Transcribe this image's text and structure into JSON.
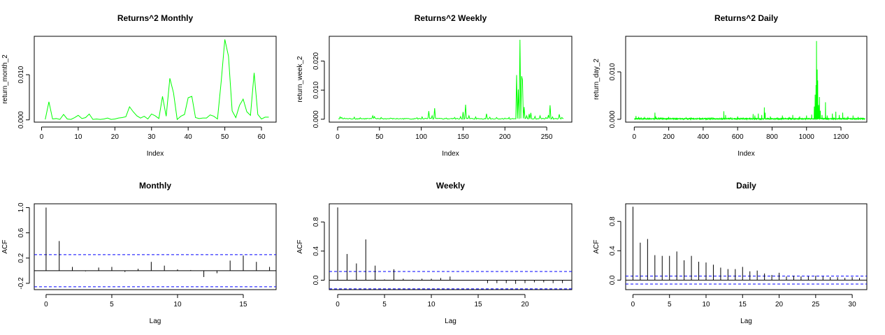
{
  "chart_data": [
    {
      "id": "p1",
      "type": "line",
      "title": "Returns^2 Monthly",
      "xlabel": "Index",
      "ylabel": "return_month_2",
      "xlim": [
        -2,
        64
      ],
      "ylim": [
        -0.0005,
        0.0185
      ],
      "xticks": [
        0,
        10,
        20,
        30,
        40,
        50,
        60
      ],
      "yticks": [
        0.0,
        0.01
      ],
      "ytick_labels": [
        "0.000",
        "0.010"
      ],
      "series": [
        {
          "color": "#00ff00",
          "x": [
            1,
            2,
            3,
            4,
            5,
            6,
            7,
            8,
            9,
            10,
            11,
            12,
            13,
            14,
            15,
            16,
            17,
            18,
            19,
            20,
            21,
            22,
            23,
            24,
            25,
            26,
            27,
            28,
            29,
            30,
            31,
            32,
            33,
            34,
            35,
            36,
            37,
            38,
            39,
            40,
            41,
            42,
            43,
            44,
            45,
            46,
            47,
            48,
            49,
            50,
            51,
            52,
            53,
            54,
            55,
            56,
            57,
            58,
            59,
            60,
            61,
            62
          ],
          "y": [
            0.0001,
            0.004,
            0.0002,
            0.0003,
            0.0001,
            0.0012,
            0.0002,
            0.0001,
            0.0005,
            0.001,
            0.0003,
            0.0005,
            0.0013,
            0.0001,
            0.0002,
            0.0001,
            0.0002,
            0.0004,
            0.0001,
            0.0002,
            0.0004,
            0.0005,
            0.0007,
            0.0029,
            0.0018,
            0.0009,
            0.0004,
            0.0008,
            0.0002,
            0.0013,
            0.0009,
            0.0003,
            0.0052,
            0.0008,
            0.0092,
            0.006,
            0.0001,
            0.0008,
            0.0012,
            0.0049,
            0.0052,
            0.0005,
            0.0003,
            0.0004,
            0.0004,
            0.0011,
            0.0008,
            0.0002,
            0.0084,
            0.0178,
            0.0141,
            0.002,
            0.0005,
            0.0032,
            0.0046,
            0.0018,
            0.001,
            0.0104,
            0.0012,
            0.0002,
            0.0006,
            0.0006
          ]
        }
      ]
    },
    {
      "id": "p2",
      "type": "line",
      "title": "Returns^2 Weekly",
      "xlabel": "Index",
      "ylabel": "return_week_2",
      "xlim": [
        -10,
        280
      ],
      "ylim": [
        -0.001,
        0.0285
      ],
      "xticks": [
        0,
        50,
        100,
        150,
        200,
        250
      ],
      "yticks": [
        0.0,
        0.01,
        0.02
      ],
      "ytick_labels": [
        "0.000",
        "0.010",
        "0.020"
      ],
      "series": [
        {
          "color": "#00ff00",
          "peaks": [
            [
              3,
              0.0008
            ],
            [
              5,
              0.0006
            ],
            [
              8,
              0.0004
            ],
            [
              20,
              0.0007
            ],
            [
              27,
              0.0005
            ],
            [
              35,
              0.0003
            ],
            [
              42,
              0.0012
            ],
            [
              44,
              0.0009
            ],
            [
              52,
              0.0006
            ],
            [
              63,
              0.0004
            ],
            [
              80,
              0.0003
            ],
            [
              95,
              0.0005
            ],
            [
              101,
              0.0008
            ],
            [
              109,
              0.0028
            ],
            [
              113,
              0.0012
            ],
            [
              116,
              0.0038
            ],
            [
              130,
              0.0004
            ],
            [
              140,
              0.0006
            ],
            [
              147,
              0.0009
            ],
            [
              150,
              0.0025
            ],
            [
              153,
              0.005
            ],
            [
              157,
              0.0012
            ],
            [
              165,
              0.0008
            ],
            [
              178,
              0.0019
            ],
            [
              182,
              0.0007
            ],
            [
              190,
              0.0006
            ],
            [
              200,
              0.0004
            ],
            [
              205,
              0.0006
            ],
            [
              214,
              0.0152
            ],
            [
              216,
              0.0102
            ],
            [
              218,
              0.0273
            ],
            [
              220,
              0.0148
            ],
            [
              221,
              0.0135
            ],
            [
              223,
              0.0042
            ],
            [
              226,
              0.0012
            ],
            [
              229,
              0.0018
            ],
            [
              231,
              0.0022
            ],
            [
              236,
              0.001
            ],
            [
              242,
              0.0012
            ],
            [
              249,
              0.0006
            ],
            [
              252,
              0.0014
            ],
            [
              254,
              0.0048
            ],
            [
              257,
              0.0008
            ],
            [
              265,
              0.0017
            ],
            [
              268,
              0.0006
            ],
            [
              271,
              0.0009
            ]
          ]
        }
      ]
    },
    {
      "id": "p3",
      "type": "line",
      "title": "Returns^2 Daily",
      "xlabel": "Index",
      "ylabel": "return_day_2",
      "xlim": [
        -50,
        1350
      ],
      "ylim": [
        -0.0006,
        0.0175
      ],
      "xticks": [
        0,
        200,
        400,
        600,
        800,
        1000,
        1200
      ],
      "yticks": [
        0.0,
        0.01
      ],
      "ytick_labels": [
        "0.000",
        "0.010"
      ],
      "series": [
        {
          "color": "#00ff00",
          "peaks": [
            [
              10,
              0.0007
            ],
            [
              25,
              0.0005
            ],
            [
              40,
              0.0004
            ],
            [
              60,
              0.0005
            ],
            [
              120,
              0.0014
            ],
            [
              125,
              0.0006
            ],
            [
              140,
              0.0004
            ],
            [
              200,
              0.0005
            ],
            [
              230,
              0.0003
            ],
            [
              300,
              0.0003
            ],
            [
              330,
              0.0004
            ],
            [
              410,
              0.0003
            ],
            [
              450,
              0.0004
            ],
            [
              520,
              0.0017
            ],
            [
              530,
              0.0009
            ],
            [
              560,
              0.0004
            ],
            [
              600,
              0.0006
            ],
            [
              650,
              0.0003
            ],
            [
              690,
              0.0011
            ],
            [
              700,
              0.0008
            ],
            [
              720,
              0.0012
            ],
            [
              740,
              0.0009
            ],
            [
              755,
              0.0025
            ],
            [
              760,
              0.0014
            ],
            [
              790,
              0.0006
            ],
            [
              830,
              0.0004
            ],
            [
              860,
              0.0008
            ],
            [
              900,
              0.0005
            ],
            [
              920,
              0.0009
            ],
            [
              960,
              0.0006
            ],
            [
              1000,
              0.0008
            ],
            [
              1030,
              0.001
            ],
            [
              1045,
              0.0027
            ],
            [
              1050,
              0.0052
            ],
            [
              1055,
              0.0072
            ],
            [
              1058,
              0.0165
            ],
            [
              1062,
              0.0105
            ],
            [
              1065,
              0.0082
            ],
            [
              1070,
              0.003
            ],
            [
              1075,
              0.0047
            ],
            [
              1080,
              0.0018
            ],
            [
              1090,
              0.0009
            ],
            [
              1110,
              0.0036
            ],
            [
              1120,
              0.0008
            ],
            [
              1150,
              0.0012
            ],
            [
              1170,
              0.0016
            ],
            [
              1190,
              0.0009
            ],
            [
              1210,
              0.0014
            ],
            [
              1240,
              0.0006
            ],
            [
              1270,
              0.0008
            ],
            [
              1300,
              0.0005
            ]
          ]
        }
      ]
    },
    {
      "id": "p4",
      "type": "bar",
      "title": "Monthly",
      "xlabel": "Lag",
      "ylabel": "ACF",
      "xlim": [
        -0.9,
        17.5
      ],
      "ylim": [
        -0.3,
        1.06
      ],
      "xticks": [
        0,
        5,
        10,
        15
      ],
      "yticks": [
        -0.2,
        0.2,
        0.6,
        1.0
      ],
      "ytick_labels": [
        "-0.2",
        "0.2",
        "0.6",
        "1.0"
      ],
      "ci": 0.254,
      "lags": [
        0,
        1,
        2,
        3,
        4,
        5,
        6,
        7,
        8,
        9,
        10,
        11,
        12,
        13,
        14,
        15,
        16,
        17
      ],
      "acf": [
        1.0,
        0.47,
        0.06,
        -0.01,
        0.05,
        0.06,
        -0.02,
        0.03,
        0.14,
        0.08,
        0.02,
        0.01,
        -0.1,
        -0.04,
        0.16,
        0.24,
        0.14,
        0.06
      ]
    },
    {
      "id": "p5",
      "type": "bar",
      "title": "Weekly",
      "xlabel": "Lag",
      "ylabel": "ACF",
      "xlim": [
        -0.9,
        25
      ],
      "ylim": [
        -0.13,
        1.05
      ],
      "xticks": [
        0,
        5,
        10,
        15,
        20
      ],
      "yticks": [
        0.0,
        0.4,
        0.8
      ],
      "ytick_labels": [
        "0.0",
        "0.4",
        "0.8"
      ],
      "ci": 0.119,
      "lags": [
        0,
        1,
        2,
        3,
        4,
        5,
        6,
        7,
        8,
        9,
        10,
        11,
        12,
        13,
        14,
        15,
        16,
        17,
        18,
        19,
        20,
        21,
        22,
        23,
        24
      ],
      "acf": [
        1.0,
        0.36,
        0.23,
        0.56,
        0.2,
        0.01,
        0.15,
        0.02,
        0.01,
        0.02,
        0.02,
        0.03,
        0.05,
        0.0,
        0.0,
        0.0,
        -0.04,
        -0.04,
        -0.04,
        -0.05,
        -0.04,
        -0.03,
        -0.03,
        -0.04,
        -0.04
      ]
    },
    {
      "id": "p6",
      "type": "bar",
      "title": "Daily",
      "xlabel": "Lag",
      "ylabel": "ACF",
      "xlim": [
        -1,
        32
      ],
      "ylim": [
        -0.13,
        1.04
      ],
      "xticks": [
        0,
        5,
        10,
        15,
        20,
        25,
        30
      ],
      "yticks": [
        0.0,
        0.4,
        0.8
      ],
      "ytick_labels": [
        "0.0",
        "0.4",
        "0.8"
      ],
      "ci": 0.054,
      "lags": [
        0,
        1,
        2,
        3,
        4,
        5,
        6,
        7,
        8,
        9,
        10,
        11,
        12,
        13,
        14,
        15,
        16,
        17,
        18,
        19,
        20,
        21,
        22,
        23,
        24,
        25,
        26,
        27,
        28,
        29,
        30,
        31
      ],
      "acf": [
        1.0,
        0.51,
        0.56,
        0.34,
        0.33,
        0.33,
        0.39,
        0.27,
        0.33,
        0.25,
        0.24,
        0.21,
        0.17,
        0.15,
        0.15,
        0.18,
        0.12,
        0.13,
        0.09,
        0.07,
        0.1,
        0.05,
        0.06,
        0.05,
        0.05,
        0.06,
        0.05,
        0.04,
        0.04,
        0.03,
        0.04,
        0.03
      ]
    }
  ]
}
